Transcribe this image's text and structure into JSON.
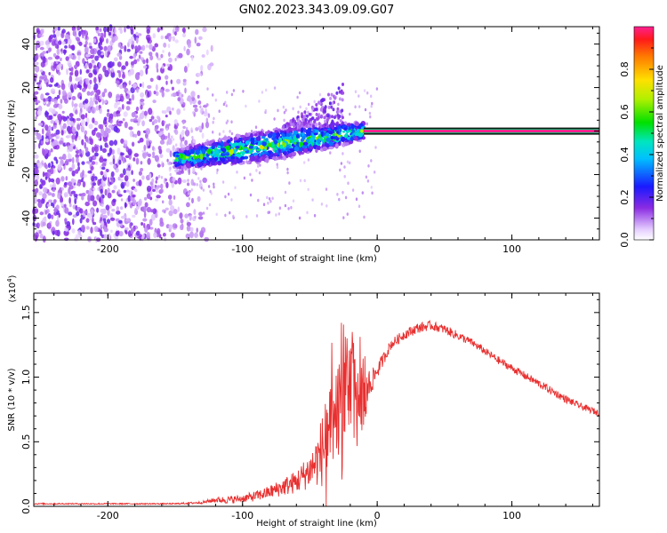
{
  "title": "GN02.2023.343.09.09.G07",
  "colors": {
    "snr_line": "#e83030",
    "background": "#ffffff",
    "axes": "#000000"
  },
  "chart_data": [
    {
      "type": "heatmap",
      "name": "spectrogram",
      "xlabel": "Height of straight line (km)",
      "ylabel": "Frequency (Hz)",
      "xlim": [
        -255,
        165
      ],
      "ylim": [
        -50,
        48
      ],
      "xticks": [
        -200,
        -100,
        0,
        100
      ],
      "xtick_labels": [
        "-200",
        "-100",
        "0",
        "100"
      ],
      "yticks": [
        -40,
        -20,
        0,
        20,
        40
      ],
      "ytick_labels": [
        "-40",
        "-20",
        "0",
        "20",
        "40"
      ],
      "colorbar": {
        "label": "Normalized spectral amplitude",
        "range": [
          0,
          1
        ],
        "ticks": [
          0.0,
          0.2,
          0.4,
          0.6,
          0.8
        ],
        "tick_labels": [
          "0.0",
          "0.2",
          "0.4",
          "0.6",
          "0.8"
        ]
      },
      "features": [
        {
          "description": "scattered low-amplitude noise",
          "x_range": [
            -255,
            -122
          ],
          "y_range": [
            -50,
            48
          ],
          "amplitude": 0.15
        },
        {
          "description": "drifting signal trace",
          "x_start": -150,
          "x_end": -10,
          "freq_start": -13,
          "freq_end": 0,
          "amplitude": 0.45
        },
        {
          "description": "plume rising near -40 km",
          "x": -35,
          "freq_max": 22
        },
        {
          "description": "steady tone at 0 Hz",
          "x_range": [
            -10,
            165
          ],
          "freq": 0,
          "amplitude": 1.0
        }
      ]
    },
    {
      "type": "line",
      "name": "snr",
      "xlabel": "Height of straight line (km)",
      "ylabel": "SNR (10 * v/v)",
      "y_scale_label": "(x10",
      "y_scale_exp": "4",
      "y_scale_close": ")",
      "xlim": [
        -255,
        165
      ],
      "ylim": [
        0,
        1.65
      ],
      "xticks": [
        -200,
        -100,
        0,
        100
      ],
      "xtick_labels": [
        "-200",
        "-100",
        "0",
        "100"
      ],
      "yticks": [
        0.0,
        0.5,
        1.0,
        1.5
      ],
      "ytick_labels": [
        "0.0",
        "0.5",
        "1.0",
        "1.5"
      ],
      "series": [
        {
          "name": "SNR",
          "color": "#e83030",
          "x": [
            -255,
            -220,
            -180,
            -150,
            -130,
            -120,
            -110,
            -100,
            -90,
            -80,
            -70,
            -60,
            -50,
            -45,
            -40,
            -35,
            -30,
            -25,
            -20,
            -15,
            -10,
            -5,
            0,
            5,
            10,
            20,
            30,
            40,
            50,
            60,
            70,
            80,
            90,
            100,
            110,
            120,
            130,
            140,
            150,
            160,
            165
          ],
          "y": [
            0.02,
            0.02,
            0.02,
            0.02,
            0.03,
            0.05,
            0.05,
            0.06,
            0.08,
            0.11,
            0.15,
            0.19,
            0.28,
            0.35,
            0.45,
            0.55,
            0.7,
            0.85,
            0.95,
            0.8,
            0.9,
            0.95,
            1.05,
            1.15,
            1.25,
            1.33,
            1.38,
            1.4,
            1.37,
            1.32,
            1.27,
            1.2,
            1.13,
            1.07,
            1.01,
            0.95,
            0.89,
            0.83,
            0.78,
            0.74,
            0.72
          ],
          "noise": [
            0.005,
            0.005,
            0.005,
            0.005,
            0.01,
            0.02,
            0.03,
            0.03,
            0.04,
            0.05,
            0.07,
            0.09,
            0.14,
            0.2,
            0.3,
            0.35,
            0.4,
            0.45,
            0.45,
            0.35,
            0.3,
            0.1,
            0.06,
            0.05,
            0.04,
            0.04,
            0.04,
            0.035,
            0.035,
            0.035,
            0.03,
            0.03,
            0.03,
            0.03,
            0.03,
            0.03,
            0.03,
            0.03,
            0.025,
            0.025,
            0.025
          ]
        }
      ]
    }
  ]
}
